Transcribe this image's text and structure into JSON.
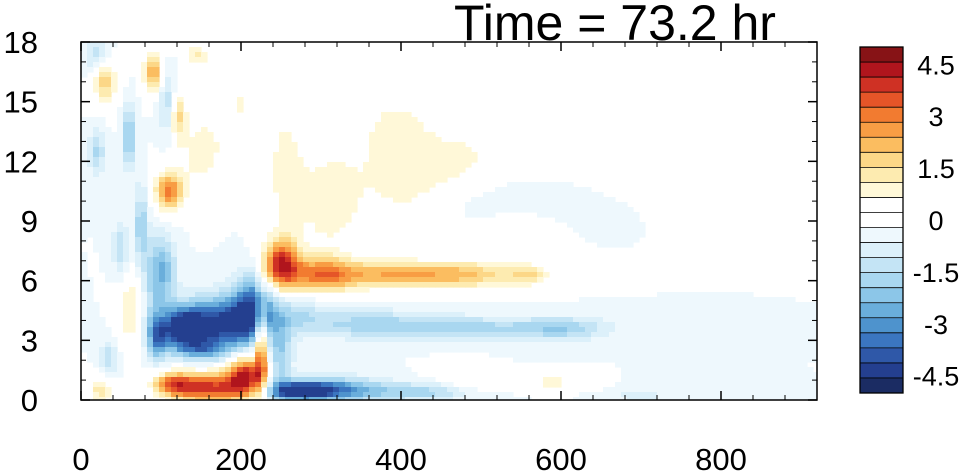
{
  "chart_data": {
    "type": "heatmap",
    "title": "Time = 73.2 hr",
    "xlabel": "",
    "ylabel": "",
    "xlim": [
      0,
      920
    ],
    "ylim": [
      0,
      18
    ],
    "x_ticks": [
      "0",
      "200",
      "400",
      "600",
      "800"
    ],
    "y_ticks": [
      "0",
      "3",
      "6",
      "9",
      "12",
      "15",
      "18"
    ],
    "colorbar": {
      "levels": [
        -5,
        5
      ],
      "step": 0.5,
      "tick_labels": [
        "4.5",
        "3",
        "1.5",
        "0",
        "-1.5",
        "-3",
        "-4.5"
      ],
      "colors": [
        "#1b2c63",
        "#243f8f",
        "#2f58a8",
        "#3b76c0",
        "#4e93cd",
        "#6aaedb",
        "#8cc6e8",
        "#a9d7f0",
        "#c4e4f5",
        "#dcf0fa",
        "#eef8fd",
        "#ffffff",
        "#ffffff",
        "#fff8d8",
        "#fdebb0",
        "#fcd787",
        "#fbbd60",
        "#f89d44",
        "#f27b30",
        "#e55528",
        "#cf3124",
        "#b0151d",
        "#871316"
      ]
    },
    "features": [
      {
        "label": "surface positive band",
        "x": [
          120,
          230
        ],
        "y": [
          0,
          2
        ],
        "value": 4.5
      },
      {
        "label": "surface negative band",
        "x": [
          240,
          450
        ],
        "y": [
          0,
          1.5
        ],
        "value": -4
      },
      {
        "label": "mid-level negative core",
        "x": [
          90,
          240
        ],
        "y": [
          2,
          6
        ],
        "value": -4.5
      },
      {
        "label": "elevated positive tongue",
        "x": [
          230,
          600
        ],
        "y": [
          5.5,
          7.5
        ],
        "value": 3
      },
      {
        "label": "elevated negative tongue",
        "x": [
          300,
          660
        ],
        "y": [
          3,
          4.5
        ],
        "value": -2
      },
      {
        "label": "upper positive region",
        "x": [
          180,
          800
        ],
        "y": [
          8,
          17
        ],
        "value": 1
      }
    ]
  }
}
